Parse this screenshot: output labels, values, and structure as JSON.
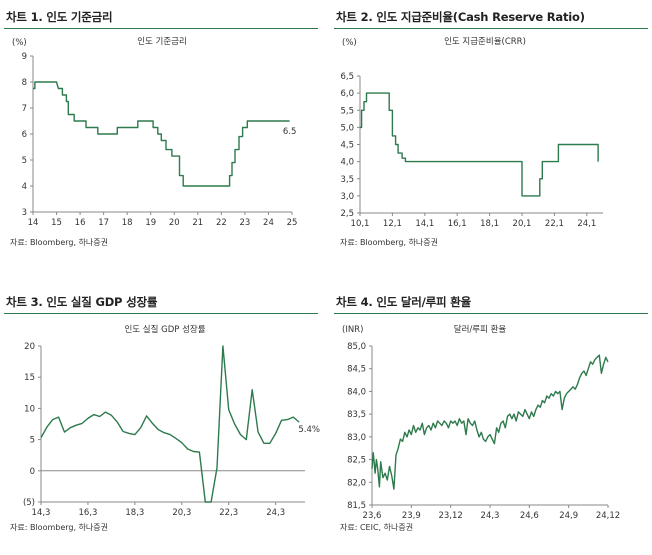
{
  "charts": [
    {
      "title": "차트 1. 인도 기준금리",
      "source": "자료: Bloomberg, 하나증권",
      "chart_data": {
        "type": "line",
        "title": "차트 1. 인도 기준금리",
        "legend": "인도 기준금리",
        "unit_label": "(%)",
        "annotation": "6.5",
        "xlim": [
          14,
          25
        ],
        "ylim": [
          3,
          9
        ],
        "x_ticks": [
          "14",
          "15",
          "16",
          "17",
          "18",
          "19",
          "20",
          "21",
          "22",
          "23",
          "24",
          "25"
        ],
        "x_tick_values": [
          14,
          15,
          16,
          17,
          18,
          19,
          20,
          21,
          22,
          23,
          24,
          25
        ],
        "y_ticks": [
          "3",
          "4",
          "5",
          "6",
          "7",
          "8",
          "9"
        ],
        "y_tick_values": [
          3,
          4,
          5,
          6,
          7,
          8,
          9
        ],
        "series": [
          {
            "name": "인도 기준금리",
            "color": "#2d7a4c",
            "x": [
              14.0,
              14.08,
              14.08,
              15.0,
              15.08,
              15.25,
              15.25,
              15.42,
              15.42,
              15.5,
              15.5,
              15.75,
              15.75,
              16.25,
              16.25,
              16.75,
              16.75,
              17.58,
              17.58,
              18.45,
              18.45,
              18.6,
              18.6,
              19.1,
              19.1,
              19.3,
              19.3,
              19.45,
              19.45,
              19.65,
              19.65,
              19.9,
              19.9,
              20.22,
              20.22,
              20.38,
              20.38,
              22.35,
              22.35,
              22.45,
              22.45,
              22.58,
              22.58,
              22.75,
              22.75,
              22.9,
              22.9,
              23.1,
              23.1,
              24.9
            ],
            "y": [
              7.75,
              7.75,
              8.0,
              8.0,
              7.75,
              7.75,
              7.5,
              7.5,
              7.25,
              7.25,
              6.75,
              6.75,
              6.5,
              6.5,
              6.25,
              6.25,
              6.0,
              6.0,
              6.25,
              6.25,
              6.5,
              6.5,
              6.5,
              6.5,
              6.25,
              6.25,
              6.0,
              6.0,
              5.75,
              5.75,
              5.4,
              5.4,
              5.15,
              5.15,
              4.4,
              4.4,
              4.0,
              4.0,
              4.4,
              4.4,
              4.9,
              4.9,
              5.4,
              5.4,
              5.9,
              5.9,
              6.25,
              6.25,
              6.5,
              6.5
            ]
          }
        ]
      }
    },
    {
      "title": "차트 2. 인도 지급준비율(Cash Reserve Ratio)",
      "source": "자료: Bloomberg, 하나증권",
      "chart_data": {
        "type": "line",
        "title": "차트 2. 인도 지급준비율(Cash Reserve Ratio)",
        "legend": "인도 지급준비율(CRR)",
        "unit_label": "(%)",
        "annotation": "",
        "xlim": [
          10.1,
          25.1
        ],
        "ylim": [
          2.5,
          6.5
        ],
        "x_ticks": [
          "10,1",
          "12,1",
          "14,1",
          "16,1",
          "18,1",
          "20,1",
          "22,1",
          "24,1"
        ],
        "x_tick_values": [
          10.1,
          12.1,
          14.1,
          16.1,
          18.1,
          20.1,
          22.1,
          24.1
        ],
        "y_ticks": [
          "2,5",
          "3,0",
          "3,5",
          "4,0",
          "4,5",
          "5,0",
          "5,5",
          "6,0",
          "6,5"
        ],
        "y_tick_values": [
          2.5,
          3.0,
          3.5,
          4.0,
          4.5,
          5.0,
          5.5,
          6.0,
          6.5
        ],
        "series": [
          {
            "name": "인도 지급준비율(CRR)",
            "color": "#2d7a4c",
            "x": [
              10.1,
              10.2,
              10.2,
              10.35,
              10.35,
              10.5,
              10.5,
              11.9,
              11.9,
              12.1,
              12.1,
              12.3,
              12.3,
              12.45,
              12.45,
              12.7,
              12.7,
              12.9,
              12.9,
              13.05,
              13.05,
              20.1,
              20.1,
              21.2,
              21.2,
              21.35,
              21.35,
              22.35,
              22.35,
              24.8,
              24.8
            ],
            "y": [
              5.0,
              5.0,
              5.5,
              5.5,
              5.75,
              5.75,
              6.0,
              6.0,
              5.5,
              5.5,
              4.75,
              4.75,
              4.5,
              4.5,
              4.25,
              4.25,
              4.1,
              4.1,
              4.0,
              4.0,
              4.0,
              4.0,
              3.0,
              3.0,
              3.5,
              3.5,
              4.0,
              4.0,
              4.5,
              4.5,
              4.0
            ]
          }
        ]
      }
    },
    {
      "title": "차트 3. 인도 실질 GDP 성장률",
      "source": "자료: Bloomberg, 하나증권",
      "chart_data": {
        "type": "line",
        "title": "차트 3. 인도 실질 GDP 성장률",
        "legend": "인도 실질 GDP 성장률",
        "unit_label": "",
        "annotation": "5.4%",
        "xlim": [
          14.0,
          25.25
        ],
        "ylim": [
          -5,
          20
        ],
        "x_ticks": [
          "14,3",
          "16,3",
          "18,3",
          "20,3",
          "22,3",
          "24,3"
        ],
        "x_tick_values": [
          14.0,
          16.0,
          18.0,
          20.0,
          22.0,
          24.0
        ],
        "y_ticks": [
          "(5)",
          "0",
          "5",
          "10",
          "15",
          "20"
        ],
        "y_tick_values": [
          -5,
          0,
          5,
          10,
          15,
          20
        ],
        "series": [
          {
            "name": "인도 실질 GDP 성장률",
            "color": "#2d7a4c",
            "x": [
              14.0,
              14.25,
              14.5,
              14.75,
              15.0,
              15.25,
              15.5,
              15.75,
              16.0,
              16.25,
              16.5,
              16.75,
              17.0,
              17.25,
              17.5,
              17.75,
              18.0,
              18.25,
              18.5,
              18.75,
              19.0,
              19.25,
              19.5,
              19.75,
              20.0,
              20.25,
              20.5,
              20.75,
              21.0,
              21.25,
              21.5,
              21.75,
              22.0,
              22.25,
              22.5,
              22.75,
              23.0,
              23.25,
              23.5,
              23.75,
              24.0,
              24.25,
              24.5,
              24.75,
              25.0
            ],
            "y": [
              5.3,
              7.0,
              8.2,
              8.6,
              6.2,
              6.9,
              7.3,
              7.6,
              8.4,
              9.0,
              8.7,
              9.4,
              8.9,
              7.8,
              6.3,
              6.0,
              5.8,
              6.9,
              8.8,
              7.6,
              6.6,
              6.1,
              5.8,
              5.2,
              4.5,
              3.5,
              3.1,
              3.0,
              -24.0,
              -6.0,
              0.5,
              21.0,
              9.8,
              7.5,
              5.8,
              5.0,
              13.0,
              6.2,
              4.4,
              4.4,
              6.0,
              8.1,
              8.2,
              8.6,
              7.8
            ]
          }
        ]
      }
    },
    {
      "title": "차트 4. 인도 달러/루피 환율",
      "source": "자료: CEIC, 하나증권",
      "chart_data": {
        "type": "line",
        "title": "차트 4. 인도 달러/루피 환율",
        "legend": "달러/루피 환율",
        "unit_label": "(INR)",
        "annotation": "",
        "xlim": [
          23.6,
          24.14
        ],
        "ylim": [
          81.5,
          85.0
        ],
        "x_ticks": [
          "23,6",
          "23,9",
          "23,12",
          "24,3",
          "24,6",
          "24,9",
          "24,12"
        ],
        "x_tick_values": [
          23.6,
          23.69,
          23.78,
          23.87,
          23.96,
          24.05,
          24.14
        ],
        "y_ticks": [
          "81,5",
          "82,0",
          "82,5",
          "83,0",
          "83,5",
          "84,0",
          "84,5",
          "85,0"
        ],
        "y_tick_values": [
          81.5,
          82.0,
          82.5,
          83.0,
          83.5,
          84.0,
          84.5,
          85.0
        ],
        "series": [
          {
            "name": "달러/루피 환율",
            "color": "#2d7a4c",
            "x": [
              23.6,
              23.603,
              23.607,
              23.61,
              23.613,
              23.617,
              23.62,
              23.625,
              23.63,
              23.635,
              23.64,
              23.645,
              23.65,
              23.655,
              23.66,
              23.665,
              23.67,
              23.675,
              23.68,
              23.685,
              23.69,
              23.695,
              23.7,
              23.705,
              23.71,
              23.715,
              23.72,
              23.725,
              23.73,
              23.735,
              23.74,
              23.745,
              23.75,
              23.755,
              23.76,
              23.765,
              23.77,
              23.775,
              23.78,
              23.785,
              23.79,
              23.795,
              23.8,
              23.805,
              23.81,
              23.815,
              23.82,
              23.825,
              23.83,
              23.835,
              23.84,
              23.845,
              23.85,
              23.855,
              23.86,
              23.865,
              23.87,
              23.875,
              23.88,
              23.885,
              23.89,
              23.895,
              23.9,
              23.905,
              23.91,
              23.915,
              23.92,
              23.925,
              23.93,
              23.935,
              23.94,
              23.945,
              23.95,
              23.955,
              23.96,
              23.965,
              23.97,
              23.975,
              23.98,
              23.985,
              23.99,
              23.995,
              24.0,
              24.005,
              24.01,
              24.015,
              24.02,
              24.025,
              24.03,
              24.035,
              24.04,
              24.045,
              24.05,
              24.055,
              24.06,
              24.065,
              24.07,
              24.075,
              24.08,
              24.085,
              24.09,
              24.095,
              24.1,
              24.105,
              24.11,
              24.115,
              24.12,
              24.125,
              24.13,
              24.135,
              24.14
            ],
            "y": [
              82.3,
              82.65,
              82.2,
              82.5,
              82.3,
              81.9,
              82.45,
              82.1,
              82.2,
              82.05,
              82.35,
              82.15,
              81.85,
              82.6,
              82.75,
              82.95,
              82.9,
              83.1,
              83.0,
              83.15,
              83.05,
              83.25,
              83.1,
              83.2,
              83.15,
              83.3,
              83.05,
              83.2,
              83.25,
              83.15,
              83.3,
              83.2,
              83.35,
              83.3,
              83.25,
              83.35,
              83.3,
              83.2,
              83.35,
              83.3,
              83.35,
              83.25,
              83.4,
              83.3,
              83.35,
              83.05,
              83.4,
              83.3,
              83.25,
              83.35,
              83.15,
              83.0,
              83.1,
              82.95,
              82.9,
              83.0,
              83.05,
              82.95,
              82.85,
              83.2,
              83.1,
              83.3,
              83.35,
              83.2,
              83.45,
              83.5,
              83.4,
              83.5,
              83.35,
              83.55,
              83.5,
              83.45,
              83.6,
              83.5,
              83.4,
              83.55,
              83.45,
              83.6,
              83.7,
              83.65,
              83.8,
              83.75,
              83.9,
              83.85,
              83.95,
              83.9,
              84.0,
              83.95,
              84.0,
              83.6,
              83.85,
              83.95,
              84.0,
              84.05,
              84.1,
              84.05,
              84.15,
              84.3,
              84.4,
              84.45,
              84.35,
              84.5,
              84.65,
              84.6,
              84.7,
              84.75,
              84.8,
              84.4,
              84.6,
              84.75,
              84.65
            ]
          }
        ]
      }
    }
  ]
}
